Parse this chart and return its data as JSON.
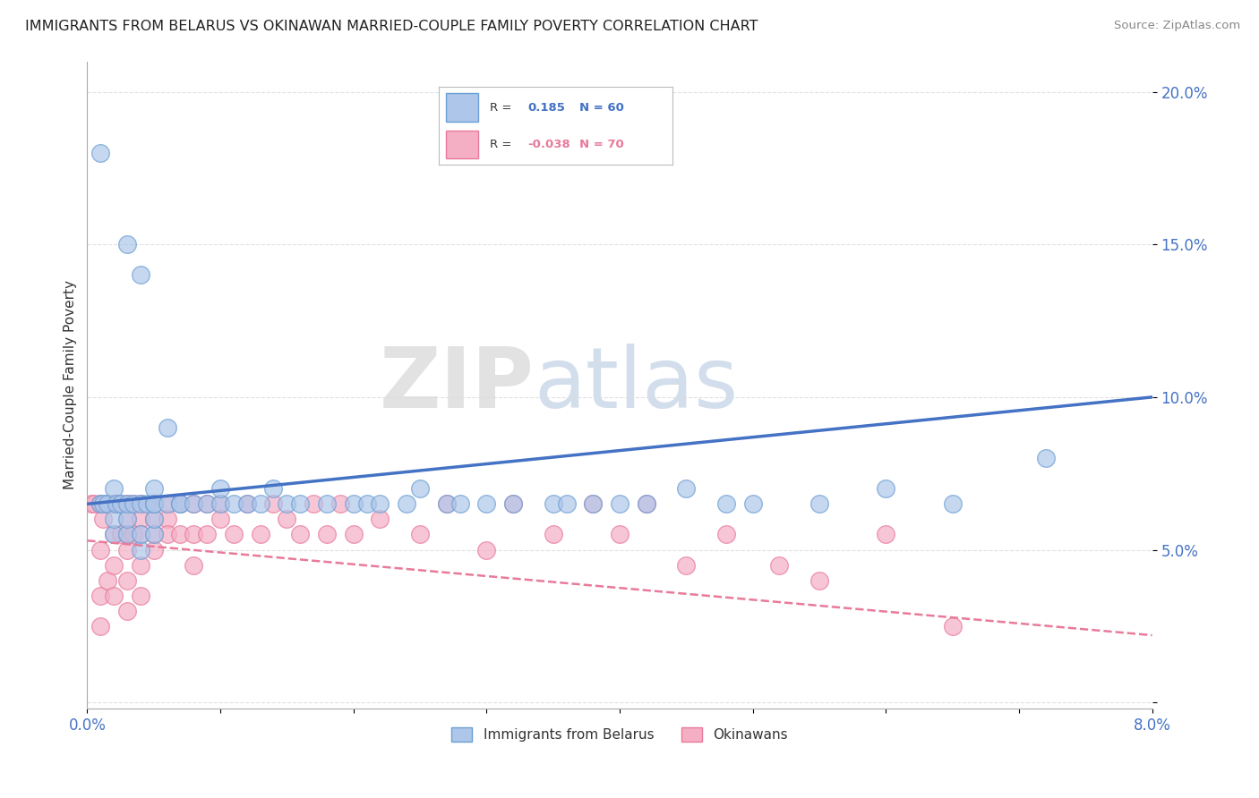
{
  "title": "IMMIGRANTS FROM BELARUS VS OKINAWAN MARRIED-COUPLE FAMILY POVERTY CORRELATION CHART",
  "source": "Source: ZipAtlas.com",
  "xlabel": "",
  "ylabel": "Married-Couple Family Poverty",
  "xlim": [
    0.0,
    0.08
  ],
  "ylim": [
    -0.002,
    0.21
  ],
  "xticks": [
    0.0,
    0.01,
    0.02,
    0.03,
    0.04,
    0.05,
    0.06,
    0.07,
    0.08
  ],
  "xticklabels": [
    "0.0%",
    "",
    "",
    "",
    "",
    "",
    "",
    "",
    "8.0%"
  ],
  "yticks": [
    0.0,
    0.05,
    0.1,
    0.15,
    0.2
  ],
  "yticklabels": [
    "",
    "5.0%",
    "10.0%",
    "15.0%",
    "20.0%"
  ],
  "legend_r1": "R =  0.185",
  "legend_n1": "N = 60",
  "legend_r2": "R = -0.038",
  "legend_n2": "N = 70",
  "blue_color": "#aec6ea",
  "pink_color": "#f5afc5",
  "blue_edge_color": "#6b9fd4",
  "pink_edge_color": "#e87a9a",
  "blue_line_color": "#4472c4",
  "pink_line_color": "#e87a9a",
  "watermark": "ZIPatlas",
  "blue_scatter_x": [
    0.001,
    0.001,
    0.0012,
    0.0015,
    0.002,
    0.002,
    0.002,
    0.0022,
    0.0025,
    0.003,
    0.003,
    0.003,
    0.003,
    0.0035,
    0.004,
    0.004,
    0.004,
    0.004,
    0.0045,
    0.005,
    0.005,
    0.005,
    0.005,
    0.005,
    0.006,
    0.006,
    0.007,
    0.007,
    0.008,
    0.009,
    0.01,
    0.01,
    0.011,
    0.012,
    0.013,
    0.014,
    0.015,
    0.016,
    0.018,
    0.02,
    0.021,
    0.022,
    0.024,
    0.025,
    0.027,
    0.028,
    0.03,
    0.032,
    0.035,
    0.036,
    0.038,
    0.04,
    0.042,
    0.045,
    0.048,
    0.05,
    0.055,
    0.06,
    0.065,
    0.072
  ],
  "blue_scatter_y": [
    0.065,
    0.18,
    0.065,
    0.065,
    0.055,
    0.06,
    0.07,
    0.065,
    0.065,
    0.055,
    0.06,
    0.065,
    0.15,
    0.065,
    0.05,
    0.055,
    0.065,
    0.14,
    0.065,
    0.055,
    0.06,
    0.065,
    0.07,
    0.065,
    0.09,
    0.065,
    0.065,
    0.065,
    0.065,
    0.065,
    0.065,
    0.07,
    0.065,
    0.065,
    0.065,
    0.07,
    0.065,
    0.065,
    0.065,
    0.065,
    0.065,
    0.065,
    0.065,
    0.07,
    0.065,
    0.065,
    0.065,
    0.065,
    0.065,
    0.065,
    0.065,
    0.065,
    0.065,
    0.07,
    0.065,
    0.065,
    0.065,
    0.07,
    0.065,
    0.08
  ],
  "pink_scatter_x": [
    0.0003,
    0.0005,
    0.001,
    0.001,
    0.001,
    0.001,
    0.0012,
    0.0015,
    0.0015,
    0.002,
    0.002,
    0.002,
    0.002,
    0.002,
    0.0025,
    0.0025,
    0.003,
    0.003,
    0.003,
    0.003,
    0.003,
    0.003,
    0.0035,
    0.0035,
    0.004,
    0.004,
    0.004,
    0.004,
    0.004,
    0.005,
    0.005,
    0.005,
    0.005,
    0.006,
    0.006,
    0.006,
    0.007,
    0.007,
    0.008,
    0.008,
    0.008,
    0.009,
    0.009,
    0.01,
    0.01,
    0.011,
    0.012,
    0.013,
    0.014,
    0.015,
    0.016,
    0.017,
    0.018,
    0.019,
    0.02,
    0.022,
    0.025,
    0.027,
    0.03,
    0.032,
    0.035,
    0.038,
    0.04,
    0.042,
    0.045,
    0.048,
    0.052,
    0.055,
    0.06,
    0.065
  ],
  "pink_scatter_y": [
    0.065,
    0.065,
    0.065,
    0.05,
    0.035,
    0.025,
    0.06,
    0.065,
    0.04,
    0.065,
    0.065,
    0.055,
    0.045,
    0.035,
    0.065,
    0.055,
    0.065,
    0.06,
    0.055,
    0.05,
    0.04,
    0.03,
    0.065,
    0.055,
    0.065,
    0.06,
    0.055,
    0.045,
    0.035,
    0.065,
    0.06,
    0.055,
    0.05,
    0.065,
    0.06,
    0.055,
    0.065,
    0.055,
    0.065,
    0.055,
    0.045,
    0.065,
    0.055,
    0.065,
    0.06,
    0.055,
    0.065,
    0.055,
    0.065,
    0.06,
    0.055,
    0.065,
    0.055,
    0.065,
    0.055,
    0.06,
    0.055,
    0.065,
    0.05,
    0.065,
    0.055,
    0.065,
    0.055,
    0.065,
    0.045,
    0.055,
    0.045,
    0.04,
    0.055,
    0.025
  ],
  "background_color": "#ffffff",
  "grid_color": "#dddddd",
  "blue_line_y0": 0.065,
  "blue_line_y1": 0.1,
  "pink_line_y0": 0.053,
  "pink_line_y1": 0.022
}
